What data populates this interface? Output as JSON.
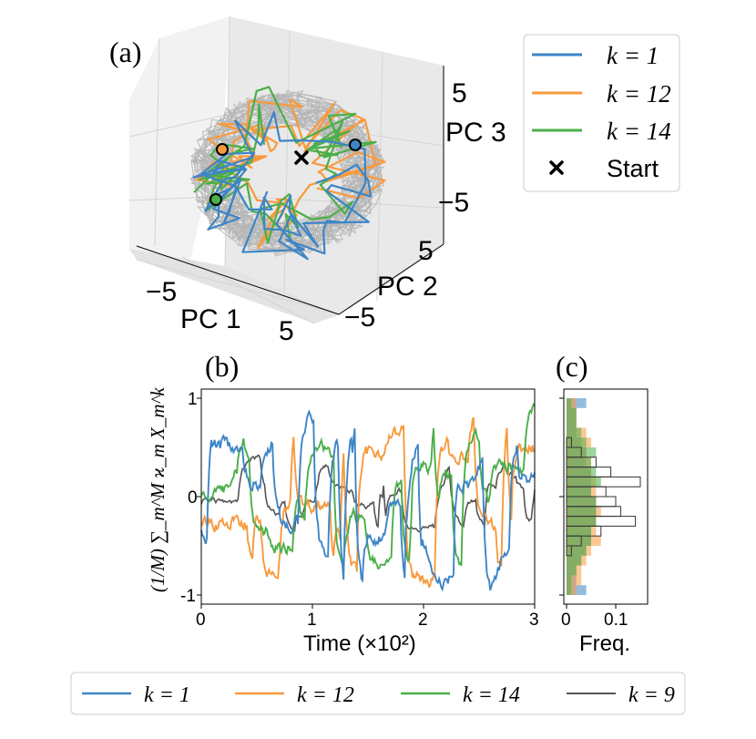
{
  "figure": {
    "panel_a_label": "(a)",
    "panel_b_label": "(b)",
    "panel_c_label": "(c)"
  },
  "colors": {
    "k1": "#3d85c6",
    "k12": "#f79a3e",
    "k14": "#4caf4a",
    "k9": "#555555",
    "background_traj": "#b5b5b5",
    "gray_hist": "#ffffff"
  },
  "chart_data": [
    {
      "type": "line3d",
      "title": "",
      "xlabel": "PC 1",
      "ylabel": "PC 2",
      "zlabel": "PC 3",
      "x_ticks": [
        "−5",
        "5"
      ],
      "y_ticks": [
        "5",
        "−5"
      ],
      "z_ticks": [
        "5",
        "−5"
      ],
      "xlim": [
        -8,
        8
      ],
      "ylim": [
        -8,
        8
      ],
      "zlim": [
        -8,
        8
      ],
      "legend": {
        "placement": "right",
        "entries": [
          {
            "label": "k = 1",
            "color": "#3d85c6",
            "kind": "line"
          },
          {
            "label": "k = 12",
            "color": "#f79a3e",
            "kind": "line"
          },
          {
            "label": "k = 14",
            "color": "#4caf4a",
            "kind": "line"
          },
          {
            "label": "Start",
            "color": "#000000",
            "kind": "x-marker"
          }
        ]
      },
      "series": [
        {
          "name": "k = 1",
          "note": "projected trajectory"
        },
        {
          "name": "k = 12",
          "note": "projected trajectory"
        },
        {
          "name": "k = 14",
          "note": "projected trajectory"
        }
      ]
    },
    {
      "type": "line",
      "title": "",
      "xlabel": "Time (×10²)",
      "ylabel": "(1/M) ∑_m^M ϰ_m X_m^k",
      "xlim": [
        0,
        3
      ],
      "ylim": [
        -1.05,
        1.05
      ],
      "x_ticks": [
        "0",
        "1",
        "2",
        "3"
      ],
      "y_ticks": [
        "1",
        "0",
        "-1"
      ],
      "series": [
        {
          "name": "k = 1",
          "amplitude": 1.0
        },
        {
          "name": "k = 12",
          "amplitude": 0.95
        },
        {
          "name": "k = 14",
          "amplitude": 0.9
        },
        {
          "name": "k = 9",
          "amplitude": 0.4
        }
      ]
    },
    {
      "type": "histogram",
      "orientation": "horizontal",
      "xlabel": "Freq.",
      "x_ticks": [
        "0",
        "0.1"
      ],
      "xlim": [
        0,
        0.17
      ],
      "ylim": [
        -1.05,
        1.05
      ],
      "bins": [
        -0.95,
        -0.85,
        -0.75,
        -0.65,
        -0.55,
        -0.45,
        -0.35,
        -0.25,
        -0.15,
        -0.05,
        0.05,
        0.15,
        0.25,
        0.35,
        0.45,
        0.55,
        0.65,
        0.75,
        0.85,
        0.95
      ],
      "series": [
        {
          "name": "k = 1",
          "freq": [
            0.04,
            0.02,
            0.02,
            0.03,
            0.04,
            0.05,
            0.05,
            0.06,
            0.06,
            0.06,
            0.05,
            0.05,
            0.05,
            0.04,
            0.04,
            0.03,
            0.02,
            0.02,
            0.02,
            0.04
          ]
        },
        {
          "name": "k = 12",
          "freq": [
            0.02,
            0.03,
            0.03,
            0.04,
            0.05,
            0.07,
            0.06,
            0.06,
            0.07,
            0.06,
            0.06,
            0.06,
            0.05,
            0.05,
            0.04,
            0.05,
            0.04,
            0.02,
            0.02,
            0.02
          ]
        },
        {
          "name": "k = 14",
          "freq": [
            0.01,
            0.01,
            0.02,
            0.03,
            0.04,
            0.05,
            0.05,
            0.06,
            0.06,
            0.06,
            0.05,
            0.07,
            0.06,
            0.05,
            0.06,
            0.04,
            0.03,
            0.02,
            0.02,
            0.01
          ]
        },
        {
          "name": "k = 9",
          "freq": [
            0.0,
            0.0,
            0.0,
            0.0,
            0.01,
            0.03,
            0.07,
            0.14,
            0.11,
            0.1,
            0.08,
            0.15,
            0.09,
            0.06,
            0.03,
            0.01,
            0.0,
            0.0,
            0.0,
            0.0
          ]
        }
      ]
    }
  ],
  "bottom_legend": {
    "entries": [
      {
        "label": "k = 1",
        "color": "#3d85c6"
      },
      {
        "label": "k = 12",
        "color": "#f79a3e"
      },
      {
        "label": "k = 14",
        "color": "#4caf4a"
      },
      {
        "label": "k = 9",
        "color": "#555555"
      }
    ]
  }
}
